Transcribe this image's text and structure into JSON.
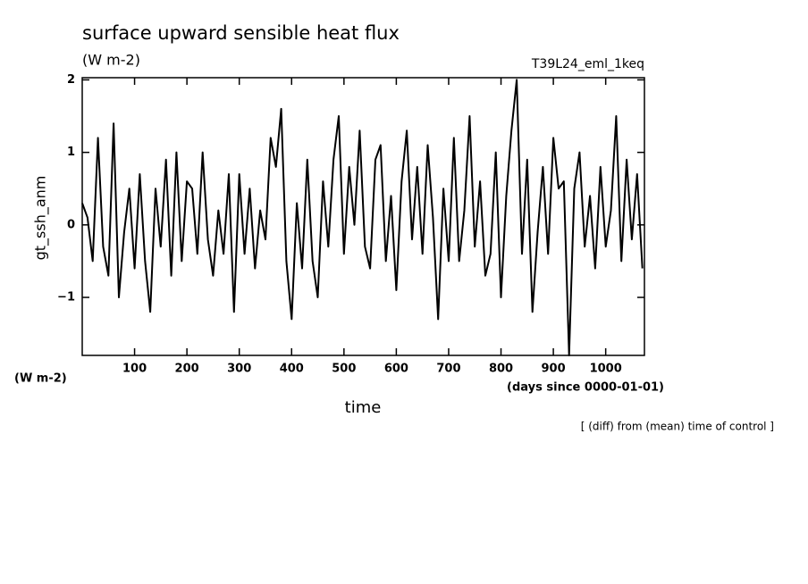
{
  "chart_data": {
    "type": "line",
    "title": "surface upward sensible heat flux",
    "subtitle": "(W m-2)",
    "run_label": "T39L24_eml_1keq",
    "y_label": "gt_ssh_anm",
    "y_unit_label": "(W m-2)",
    "x_label": "time",
    "x_unit_label": "(days since 0000-01-01)",
    "note": "[ (diff) from (mean) time of control ]",
    "color": "#000000",
    "xlim": [
      0,
      1074
    ],
    "ylim": [
      -1.8,
      2.03
    ],
    "xticks": [
      100,
      200,
      300,
      400,
      500,
      600,
      700,
      800,
      900,
      1000
    ],
    "yticks": [
      {
        "value": -1,
        "label": "−1"
      },
      0,
      1,
      2
    ],
    "x": [
      0,
      10,
      20,
      30,
      40,
      50,
      60,
      70,
      80,
      90,
      100,
      110,
      120,
      130,
      140,
      150,
      160,
      170,
      180,
      190,
      200,
      210,
      220,
      230,
      240,
      250,
      260,
      270,
      280,
      290,
      300,
      310,
      320,
      330,
      340,
      350,
      360,
      370,
      380,
      390,
      400,
      410,
      420,
      430,
      440,
      450,
      460,
      470,
      480,
      490,
      500,
      510,
      520,
      530,
      540,
      550,
      560,
      570,
      580,
      590,
      600,
      610,
      620,
      630,
      640,
      650,
      660,
      670,
      680,
      690,
      700,
      710,
      720,
      730,
      740,
      750,
      760,
      770,
      780,
      790,
      800,
      810,
      820,
      830,
      840,
      850,
      860,
      870,
      880,
      890,
      900,
      910,
      920,
      930,
      940,
      950,
      960,
      970,
      980,
      990,
      1000,
      1010,
      1020,
      1030,
      1040,
      1050,
      1060,
      1070
    ],
    "values": [
      0.3,
      0.1,
      -0.5,
      1.2,
      -0.3,
      -0.7,
      1.4,
      -1.0,
      -0.1,
      0.5,
      -0.6,
      0.7,
      -0.5,
      -1.2,
      0.5,
      -0.3,
      0.9,
      -0.7,
      1.0,
      -0.5,
      0.6,
      0.5,
      -0.4,
      1.0,
      -0.2,
      -0.7,
      0.2,
      -0.4,
      0.7,
      -1.2,
      0.7,
      -0.4,
      0.5,
      -0.6,
      0.2,
      -0.2,
      1.2,
      0.8,
      1.6,
      -0.5,
      -1.3,
      0.3,
      -0.6,
      0.9,
      -0.5,
      -1.0,
      0.6,
      -0.3,
      0.9,
      1.5,
      -0.4,
      0.8,
      0.0,
      1.3,
      -0.3,
      -0.6,
      0.9,
      1.1,
      -0.5,
      0.4,
      -0.9,
      0.6,
      1.3,
      -0.2,
      0.8,
      -0.4,
      1.1,
      0.1,
      -1.3,
      0.5,
      -0.5,
      1.2,
      -0.5,
      0.2,
      1.5,
      -0.3,
      0.6,
      -0.7,
      -0.4,
      1.0,
      -1.0,
      0.4,
      1.3,
      2.0,
      -0.4,
      0.9,
      -1.2,
      -0.1,
      0.8,
      -0.4,
      1.2,
      0.5,
      0.6,
      -1.8,
      0.5,
      1.0,
      -0.3,
      0.4,
      -0.6,
      0.8,
      -0.3,
      0.2,
      1.5,
      -0.5,
      0.9,
      -0.2,
      0.7,
      -0.6
    ]
  }
}
